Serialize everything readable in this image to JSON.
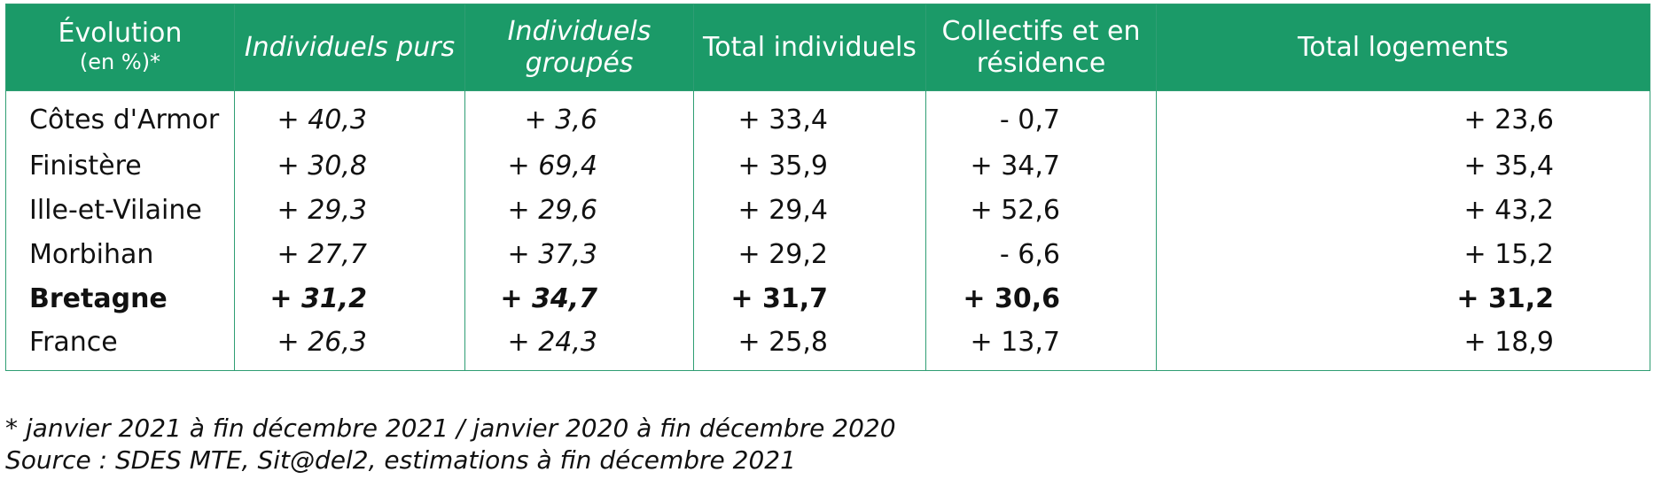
{
  "table": {
    "headers": [
      {
        "line1": "Évolution",
        "line2": "(en %)*"
      },
      {
        "line1": "Individuels purs",
        "line2": ""
      },
      {
        "line1": "Individuels",
        "line2": "groupés"
      },
      {
        "line1": "Total individuels",
        "line2": ""
      },
      {
        "line1": "Collectifs et en",
        "line2": "résidence"
      },
      {
        "line1": "Total logements",
        "line2": ""
      }
    ],
    "rows": [
      {
        "region": "Côtes d'Armor",
        "individuels_purs": "+ 40,3",
        "individuels_groupes": "+ 3,6",
        "total_individuels": "+ 33,4",
        "collectifs": "- 0,7",
        "total_logements": "+ 23,6"
      },
      {
        "region": "Finistère",
        "individuels_purs": "+ 30,8",
        "individuels_groupes": "+ 69,4",
        "total_individuels": "+ 35,9",
        "collectifs": "+ 34,7",
        "total_logements": "+ 35,4"
      },
      {
        "region": "Ille-et-Vilaine",
        "individuels_purs": "+ 29,3",
        "individuels_groupes": "+ 29,6",
        "total_individuels": "+ 29,4",
        "collectifs": "+ 52,6",
        "total_logements": "+ 43,2"
      },
      {
        "region": "Morbihan",
        "individuels_purs": "+ 27,7",
        "individuels_groupes": "+ 37,3",
        "total_individuels": "+ 29,2",
        "collectifs": "- 6,6",
        "total_logements": "+ 15,2"
      },
      {
        "region": "Bretagne",
        "individuels_purs": "+ 31,2",
        "individuels_groupes": "+ 34,7",
        "total_individuels": "+ 31,7",
        "collectifs": "+ 30,6",
        "total_logements": "+ 31,2"
      },
      {
        "region": "France",
        "individuels_purs": "+ 26,3",
        "individuels_groupes": "+ 24,3",
        "total_individuels": "+ 25,8",
        "collectifs": "+ 13,7",
        "total_logements": "+ 18,9"
      }
    ]
  },
  "notes": {
    "footnote": "* janvier 2021 à fin décembre 2021 / janvier 2020 à fin décembre 2020",
    "source": "Source : SDES MTE, Sit@del2, estimations à fin décembre 2021"
  },
  "colors": {
    "header_bg": "#1b9a68",
    "border": "#2f9e73"
  }
}
